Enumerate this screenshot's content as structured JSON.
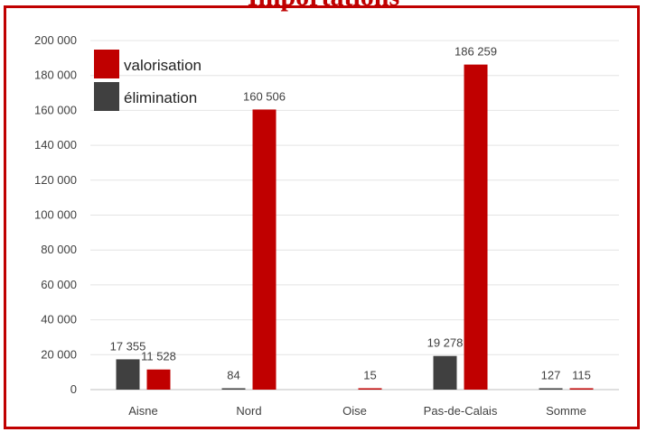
{
  "chart_data": {
    "type": "bar",
    "title": "Importations",
    "categories": [
      "Aisne",
      "Nord",
      "Oise",
      "Pas-de-Calais",
      "Somme"
    ],
    "series": [
      {
        "name": "élimination",
        "color": "#404040",
        "values": [
          17355,
          84,
          0,
          19278,
          127
        ],
        "labels": [
          "17 355",
          "84",
          "",
          "19 278",
          "127"
        ]
      },
      {
        "name": "valorisation",
        "color": "#c00000",
        "values": [
          11528,
          160506,
          15,
          186259,
          115
        ],
        "labels": [
          "11 528",
          "160 506",
          "15",
          "186 259",
          "115"
        ]
      }
    ],
    "ylim": [
      0,
      200000
    ],
    "yticks": [
      "0",
      "20 000",
      "40 000",
      "60 000",
      "80 000",
      "100 000",
      "120 000",
      "140 000",
      "160 000",
      "180 000",
      "200 000"
    ],
    "grid": true,
    "legend": "top-left"
  }
}
